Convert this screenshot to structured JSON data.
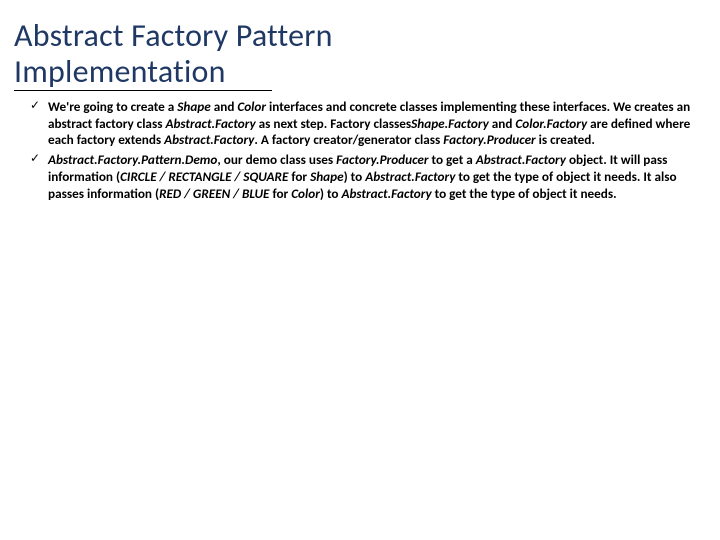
{
  "colors": {
    "title": "#1f3864",
    "body": "#000000",
    "background": "#ffffff",
    "underline": "#000000"
  },
  "typography": {
    "title_fontsize_pt": 24,
    "body_fontsize_pt": 10,
    "font_family": "Calibri"
  },
  "title_line1": "Abstract Factory Pattern",
  "title_line2": "Implementation",
  "checkmark": "✓",
  "bullets": [
    {
      "runs": [
        {
          "t": "We're going to create a ",
          "i": false
        },
        {
          "t": "Shape",
          "i": true
        },
        {
          "t": " and ",
          "i": false
        },
        {
          "t": "Color",
          "i": true
        },
        {
          "t": " interfaces and concrete classes implementing these interfaces. We creates an abstract factory class ",
          "i": false
        },
        {
          "t": "Abstract.Factory",
          "i": true
        },
        {
          "t": " as next step. Factory classes",
          "i": false
        },
        {
          "t": "Shape.Factory",
          "i": true
        },
        {
          "t": " and ",
          "i": false
        },
        {
          "t": "Color.Factory",
          "i": true
        },
        {
          "t": " are defined where each factory extends ",
          "i": false
        },
        {
          "t": "Abstract.Factory",
          "i": true
        },
        {
          "t": ". A factory creator/generator class ",
          "i": false
        },
        {
          "t": "Factory.Producer",
          "i": true
        },
        {
          "t": " is created.",
          "i": false
        }
      ]
    },
    {
      "runs": [
        {
          "t": "Abstract.Factory.Pattern.Demo",
          "i": true
        },
        {
          "t": ", our demo class uses ",
          "i": false
        },
        {
          "t": "Factory.Producer",
          "i": true
        },
        {
          "t": " to get a ",
          "i": false
        },
        {
          "t": "Abstract.Factory",
          "i": true
        },
        {
          "t": " object. It will pass information (",
          "i": false
        },
        {
          "t": "CIRCLE / RECTANGLE / SQUARE",
          "i": true
        },
        {
          "t": " for ",
          "i": false
        },
        {
          "t": "Shape",
          "i": true
        },
        {
          "t": ") to ",
          "i": false
        },
        {
          "t": "Abstract.Factory",
          "i": true
        },
        {
          "t": " to get the type of object it needs. It also passes information (",
          "i": false
        },
        {
          "t": "RED / GREEN / BLUE",
          "i": true
        },
        {
          "t": " for ",
          "i": false
        },
        {
          "t": "Color",
          "i": true
        },
        {
          "t": ") to ",
          "i": false
        },
        {
          "t": "Abstract.Factory",
          "i": true
        },
        {
          "t": " to get the type of object it needs.",
          "i": false
        }
      ]
    }
  ]
}
